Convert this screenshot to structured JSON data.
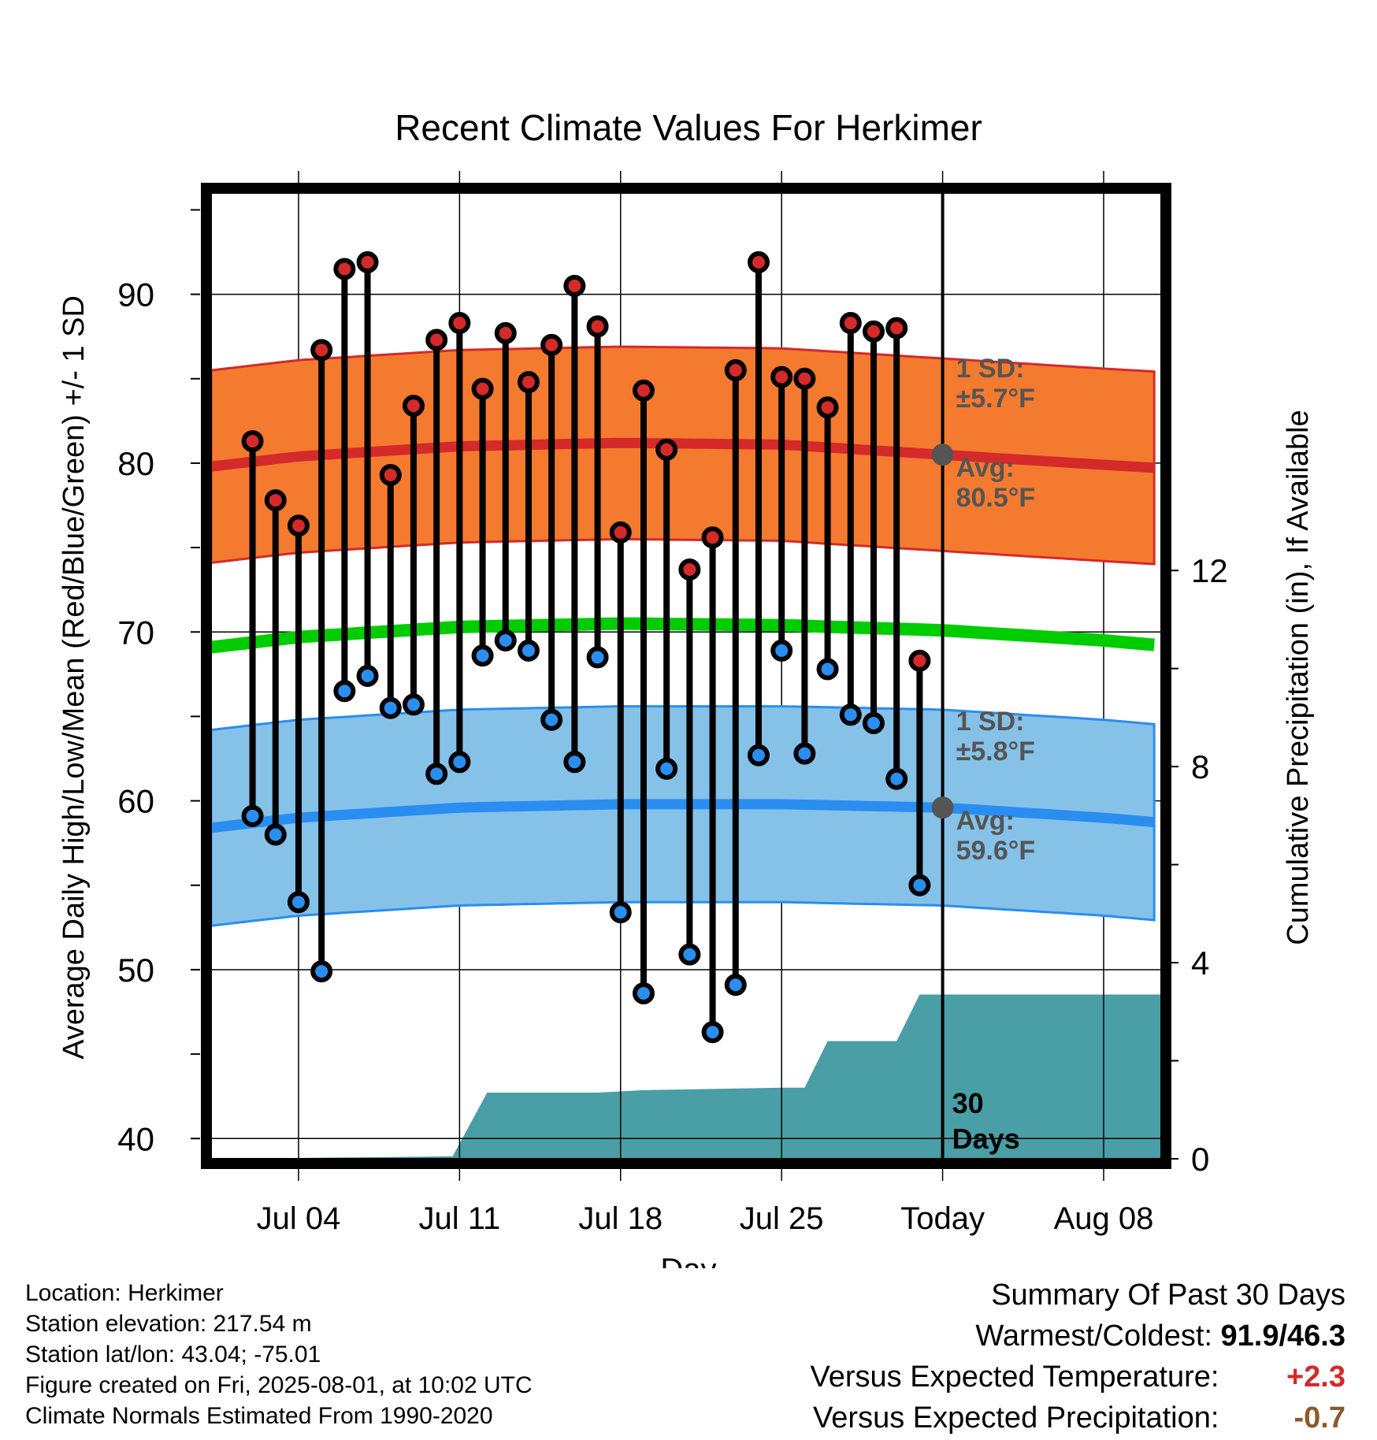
{
  "chart_data": {
    "type": "line",
    "title": "Recent Climate Values For Herkimer",
    "xlabel": "Day",
    "ylabel": "Average Daily High/Low/Mean (Red/Blue/Green) +/- 1 SD",
    "y2label": "Cumulative Precipitation (in), If Available",
    "ylim": [
      38.8,
      96
    ],
    "y2lim": [
      0,
      19.7
    ],
    "xlim": [
      -0.8,
      40.5
    ],
    "yticks": [
      40,
      50,
      60,
      70,
      80,
      90
    ],
    "y2ticks": [
      0,
      4,
      8,
      12
    ],
    "xticks": [
      {
        "day": 3,
        "label": "Jul 04"
      },
      {
        "day": 10,
        "label": "Jul 11"
      },
      {
        "day": 17,
        "label": "Jul 18"
      },
      {
        "day": 24,
        "label": "Jul 25"
      },
      {
        "day": 31,
        "label": "Today"
      },
      {
        "day": 38,
        "label": "Aug 08"
      }
    ],
    "days_label": "30\nDays",
    "grid": true,
    "highs": [
      81.3,
      77.8,
      76.3,
      86.7,
      91.5,
      91.9,
      79.3,
      83.4,
      87.3,
      88.3,
      84.4,
      87.7,
      84.8,
      87.0,
      90.5,
      88.1,
      75.9,
      84.3,
      80.8,
      73.7,
      75.6,
      85.5,
      91.9,
      85.1,
      85.0,
      83.3,
      88.3,
      87.8,
      88.0,
      68.3
    ],
    "lows": [
      59.1,
      58.0,
      54.0,
      49.9,
      66.5,
      67.4,
      65.5,
      65.7,
      61.6,
      62.3,
      68.6,
      69.5,
      68.9,
      64.8,
      62.3,
      68.5,
      53.4,
      48.6,
      61.9,
      50.9,
      46.3,
      49.1,
      62.7,
      68.9,
      62.8,
      67.8,
      65.1,
      64.6,
      61.3,
      55.0
    ],
    "normal_days": [
      -0.8,
      3,
      10,
      17,
      24,
      31,
      38,
      40.5
    ],
    "normal_high": [
      79.8,
      80.4,
      81.0,
      81.2,
      81.1,
      80.5,
      79.9,
      79.7
    ],
    "normal_low": [
      58.4,
      59.0,
      59.6,
      59.8,
      59.8,
      59.6,
      59.0,
      58.7
    ],
    "normal_mean": [
      69.1,
      69.7,
      70.3,
      70.5,
      70.4,
      70.1,
      69.5,
      69.2
    ],
    "sd_high": 5.7,
    "sd_low": 5.8,
    "precip_days": [
      -0.8,
      9.7,
      11.2,
      16,
      18,
      24,
      25,
      26,
      29,
      30,
      40.5
    ],
    "precip_values": [
      0,
      0.05,
      1.35,
      1.35,
      1.4,
      1.45,
      1.45,
      2.4,
      2.4,
      3.35,
      3.35
    ],
    "colors": {
      "high": "#d42a2a",
      "high_band": "#f47a30",
      "low": "#2a8ef0",
      "low_band": "#86c1e8",
      "mean": "#00cc00",
      "precip": "#4a9ea5",
      "annot": "#555555"
    },
    "annotations": {
      "high_sd_label": "1 SD:",
      "high_sd_value": "±5.7°F",
      "high_avg_label": "Avg:",
      "high_avg_value": "80.5°F",
      "low_sd_label": "1 SD:",
      "low_sd_value": "±5.8°F",
      "low_avg_label": "Avg:",
      "low_avg_value": "59.6°F"
    }
  },
  "footer": {
    "location": "Location: Herkimer",
    "elevation": "Station elevation: 217.54 m",
    "latlon": "Station lat/lon: 43.04; -75.01",
    "created": "Figure created on Fri, 2025-08-01, at 10:02 UTC",
    "normals": "Climate Normals Estimated From 1990-2020"
  },
  "summary": {
    "heading": "Summary Of Past 30 Days",
    "warm_cold_label": "Warmest/Coldest:",
    "warm_cold_value": "91.9/46.3",
    "temp_label": "Versus Expected Temperature:",
    "temp_value": "+2.3",
    "temp_color": "#d42a2a",
    "precip_label": "Versus Expected Precipitation:",
    "precip_value": "-0.7",
    "precip_color": "#8b5a2b"
  }
}
